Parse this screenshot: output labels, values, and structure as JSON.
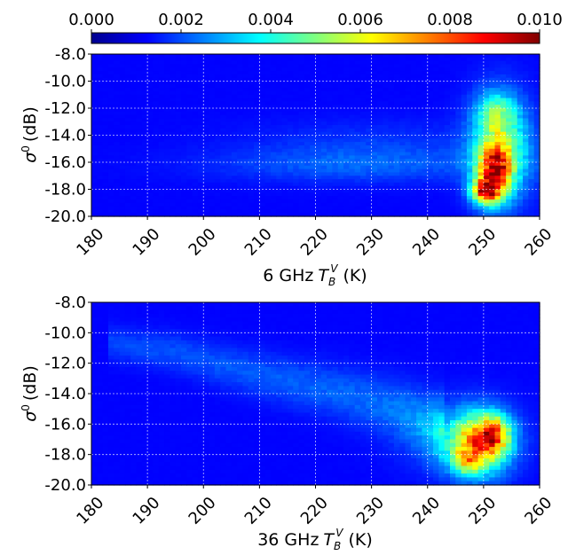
{
  "chart_data": [
    {
      "type": "heatmap",
      "xlabel_prefix": "6 GHz",
      "xlabel_symbol": "T",
      "xlabel_sub": "B",
      "xlabel_sup": "V",
      "xlabel_unit": "(K)",
      "ylabel_symbol": "σ",
      "ylabel_sup": "0",
      "ylabel_unit": "(dB)",
      "xlim": [
        180,
        260
      ],
      "ylim": [
        -20,
        -8
      ],
      "x_ticks": [
        "180",
        "190",
        "200",
        "210",
        "220",
        "230",
        "240",
        "250",
        "260"
      ],
      "y_ticks": [
        "-8.0",
        "-10.0",
        "-12.0",
        "-14.0",
        "-16.0",
        "-18.0",
        "-20.0"
      ],
      "grid": true,
      "blobs": [
        {
          "x": 253,
          "y": -15.0,
          "sx": 3.6,
          "sy": 2.6,
          "v": 0.0042
        },
        {
          "x": 252,
          "y": -16.8,
          "sx": 2.0,
          "sy": 1.4,
          "v": 0.0062
        },
        {
          "x": 250,
          "y": -18.2,
          "sx": 1.6,
          "sy": 0.6,
          "v": 0.0058
        },
        {
          "x": 252,
          "y": -12.3,
          "sx": 2.4,
          "sy": 1.0,
          "v": 0.0022
        },
        {
          "x": 228,
          "y": -16.2,
          "sx": 18.0,
          "sy": 0.9,
          "v": 0.001
        },
        {
          "x": 230,
          "y": -14.5,
          "sx": 16.0,
          "sy": 1.2,
          "v": 0.0005
        }
      ]
    },
    {
      "type": "heatmap",
      "xlabel_prefix": "36 GHz",
      "xlabel_symbol": "T",
      "xlabel_sub": "B",
      "xlabel_sup": "V",
      "xlabel_unit": "(K)",
      "ylabel_symbol": "σ",
      "ylabel_sup": "0",
      "ylabel_unit": "(dB)",
      "xlim": [
        180,
        260
      ],
      "ylim": [
        -20,
        -8
      ],
      "x_ticks": [
        "180",
        "190",
        "200",
        "210",
        "220",
        "230",
        "240",
        "250",
        "260"
      ],
      "y_ticks": [
        "-8.0",
        "-10.0",
        "-12.0",
        "-14.0",
        "-16.0",
        "-18.0",
        "-20.0"
      ],
      "grid": true,
      "blobs": [
        {
          "x": 249,
          "y": -17.3,
          "sx": 3.8,
          "sy": 1.4,
          "v": 0.0062
        },
        {
          "x": 252,
          "y": -16.6,
          "sx": 2.0,
          "sy": 0.8,
          "v": 0.004
        },
        {
          "x": 247,
          "y": -18.5,
          "sx": 1.6,
          "sy": 0.5,
          "v": 0.003
        },
        {
          "x": 245,
          "y": -16.8,
          "sx": 7.0,
          "sy": 1.6,
          "v": 0.001
        }
      ],
      "ridge": [
        {
          "x": 183,
          "y": -10.7
        },
        {
          "x": 195,
          "y": -11.3
        },
        {
          "x": 205,
          "y": -12.3
        },
        {
          "x": 215,
          "y": -13.2
        },
        {
          "x": 225,
          "y": -14.0
        },
        {
          "x": 235,
          "y": -15.0
        },
        {
          "x": 243,
          "y": -16.3
        }
      ],
      "ridge_value": 0.0013
    }
  ],
  "colorbar": {
    "ticks": [
      "0.000",
      "0.002",
      "0.004",
      "0.006",
      "0.008",
      "0.010"
    ],
    "range": [
      0,
      0.01
    ],
    "colormap": "jet"
  }
}
